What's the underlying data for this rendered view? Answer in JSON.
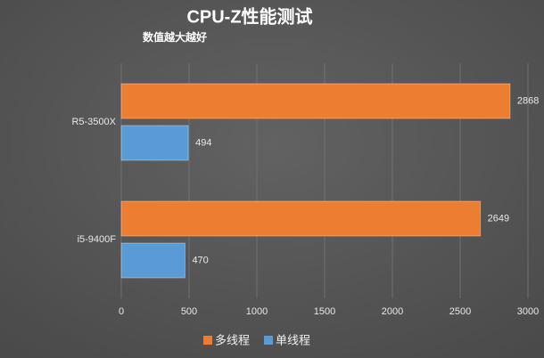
{
  "chart_data": {
    "type": "bar",
    "orientation": "horizontal",
    "title": "CPU-Z性能测试",
    "subtitle": "数值越大越好",
    "categories": [
      "R5-3500X",
      "i5-9400F"
    ],
    "series": [
      {
        "name": "多线程",
        "color": "#ed7d31",
        "values": [
          2868,
          2649
        ]
      },
      {
        "name": "单线程",
        "color": "#5b9bd5",
        "values": [
          494,
          470
        ]
      }
    ],
    "xlim": [
      0,
      3000
    ],
    "xticks": [
      0,
      500,
      1000,
      1500,
      2000,
      2500,
      3000
    ],
    "grid": true,
    "legend": "bottom"
  }
}
